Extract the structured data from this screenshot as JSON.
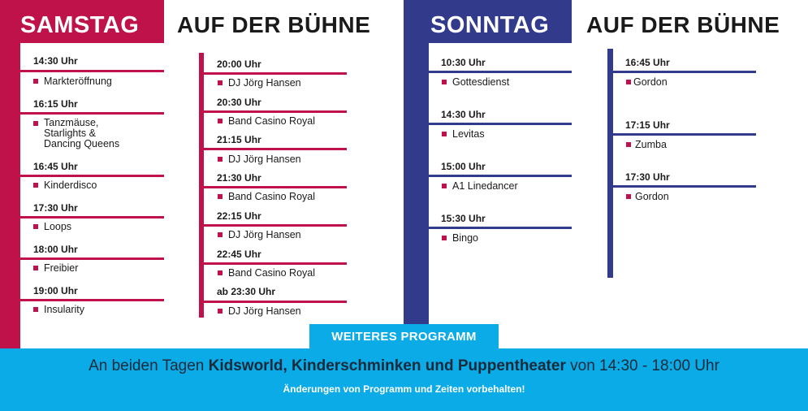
{
  "saturday": {
    "header": "SAMSTAG",
    "stage_header": "AUF DER BÜHNE",
    "program": [
      {
        "time": "14:30 Uhr",
        "act": "Marktеröffnung"
      },
      {
        "time": "16:15 Uhr",
        "act_lines": [
          "Tanzmäuse,",
          "Starlights &",
          "Dancing Queens"
        ]
      },
      {
        "time": "16:45 Uhr",
        "act": "Kinderdisco"
      },
      {
        "time": "17:30 Uhr",
        "act": "Loops"
      },
      {
        "time": "18:00 Uhr",
        "act": "Freibier"
      },
      {
        "time": "19:00 Uhr",
        "act": "Insularity"
      }
    ],
    "stage": [
      {
        "time": "20:00 Uhr",
        "act": "DJ Jörg Hansen"
      },
      {
        "time": "20:30 Uhr",
        "act": "Band Casino Royal"
      },
      {
        "time": "21:15 Uhr",
        "act": "DJ Jörg Hansen"
      },
      {
        "time": "21:30 Uhr",
        "act": "Band Casino Royal"
      },
      {
        "time": "22:15 Uhr",
        "act": "DJ Jörg Hansen"
      },
      {
        "time": "22:45 Uhr",
        "act": "Band Casino Royal"
      },
      {
        "time": "ab 23:30 Uhr",
        "act": "DJ Jörg Hansen"
      }
    ]
  },
  "sunday": {
    "header": "SONNTAG",
    "stage_header": "AUF DER BÜHNE",
    "program": [
      {
        "time": "10:30 Uhr",
        "act": "Gottesdienst"
      },
      {
        "time": "14:30 Uhr",
        "act": "Levitas"
      },
      {
        "time": "15:00 Uhr",
        "act": "A1 Linedancer"
      },
      {
        "time": "15:30 Uhr",
        "act": "Bingo"
      }
    ],
    "stage": [
      {
        "time": "16:45 Uhr",
        "act": "Gordon"
      },
      {
        "time": "17:15 Uhr",
        "act": "Zumba"
      },
      {
        "time": "17:30 Uhr",
        "act": "Gordon"
      }
    ]
  },
  "footer": {
    "tab_label": "WEITERES PROGRAMM",
    "line_prefix": "An beiden Tagen ",
    "line_bold": "Kidsworld, Kinderschminken und Puppentheater",
    "line_suffix": " von 14:30 - 18:00 Uhr",
    "note": "Änderungen von Programm und Zeiten vorbehalten!"
  },
  "colors": {
    "red": "#c0124a",
    "blue": "#323a8c",
    "cyan": "#0aabe6"
  }
}
